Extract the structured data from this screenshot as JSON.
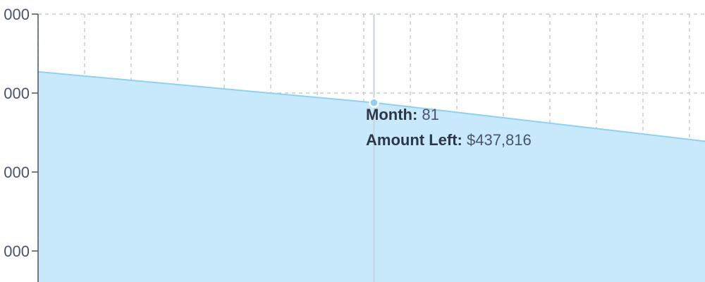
{
  "chart_data": {
    "type": "area",
    "title": "",
    "xlabel": "",
    "ylabel": "",
    "y_tick_labels_visible": [
      "000",
      "000",
      "000",
      "000"
    ],
    "grid": true,
    "grid_style": "dashed",
    "x_visible_range": [
      13,
      148
    ],
    "series": [
      {
        "x": [
          13,
          81,
          148
        ],
        "values": [
          477000,
          437816,
          389000
        ]
      }
    ],
    "colors": {
      "fill": "#c8e8fb",
      "line": "#90d0f0",
      "grid": "#cccccc",
      "axis": "#4a5568",
      "cursor": "#c8d3dd"
    }
  },
  "tooltip": {
    "month_label": "Month:",
    "month_value": "81",
    "amount_label": "Amount Left:",
    "amount_value": "$437,816"
  }
}
